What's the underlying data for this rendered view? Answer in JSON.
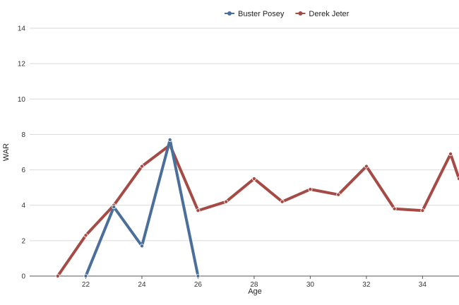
{
  "chart_data": {
    "type": "line",
    "xlabel": "Age",
    "ylabel": "WAR",
    "xlim": [
      20,
      35.3
    ],
    "ylim": [
      0,
      14
    ],
    "x_ticks": [
      22,
      24,
      26,
      28,
      30,
      32,
      34
    ],
    "y_ticks": [
      0,
      2,
      4,
      6,
      8,
      10,
      12,
      14
    ],
    "grid": true,
    "legend_position": "top-center",
    "series": [
      {
        "name": "Buster Posey",
        "color": "#4a6f9a",
        "points": [
          [
            22,
            0.0
          ],
          [
            23,
            3.9
          ],
          [
            24,
            1.7
          ],
          [
            25,
            7.7
          ],
          [
            26,
            0.0
          ]
        ]
      },
      {
        "name": "Derek Jeter",
        "color": "#a54a45",
        "points": [
          [
            21,
            0.0
          ],
          [
            22,
            2.3
          ],
          [
            23,
            4.0
          ],
          [
            24,
            6.2
          ],
          [
            25,
            7.4
          ],
          [
            26,
            3.7
          ],
          [
            27,
            4.2
          ],
          [
            28,
            5.5
          ],
          [
            29,
            4.2
          ],
          [
            30,
            4.9
          ],
          [
            31,
            4.6
          ],
          [
            32,
            6.2
          ],
          [
            33,
            3.8
          ],
          [
            34,
            3.7
          ],
          [
            35,
            6.9
          ],
          [
            35.3,
            5.5
          ]
        ]
      }
    ]
  }
}
